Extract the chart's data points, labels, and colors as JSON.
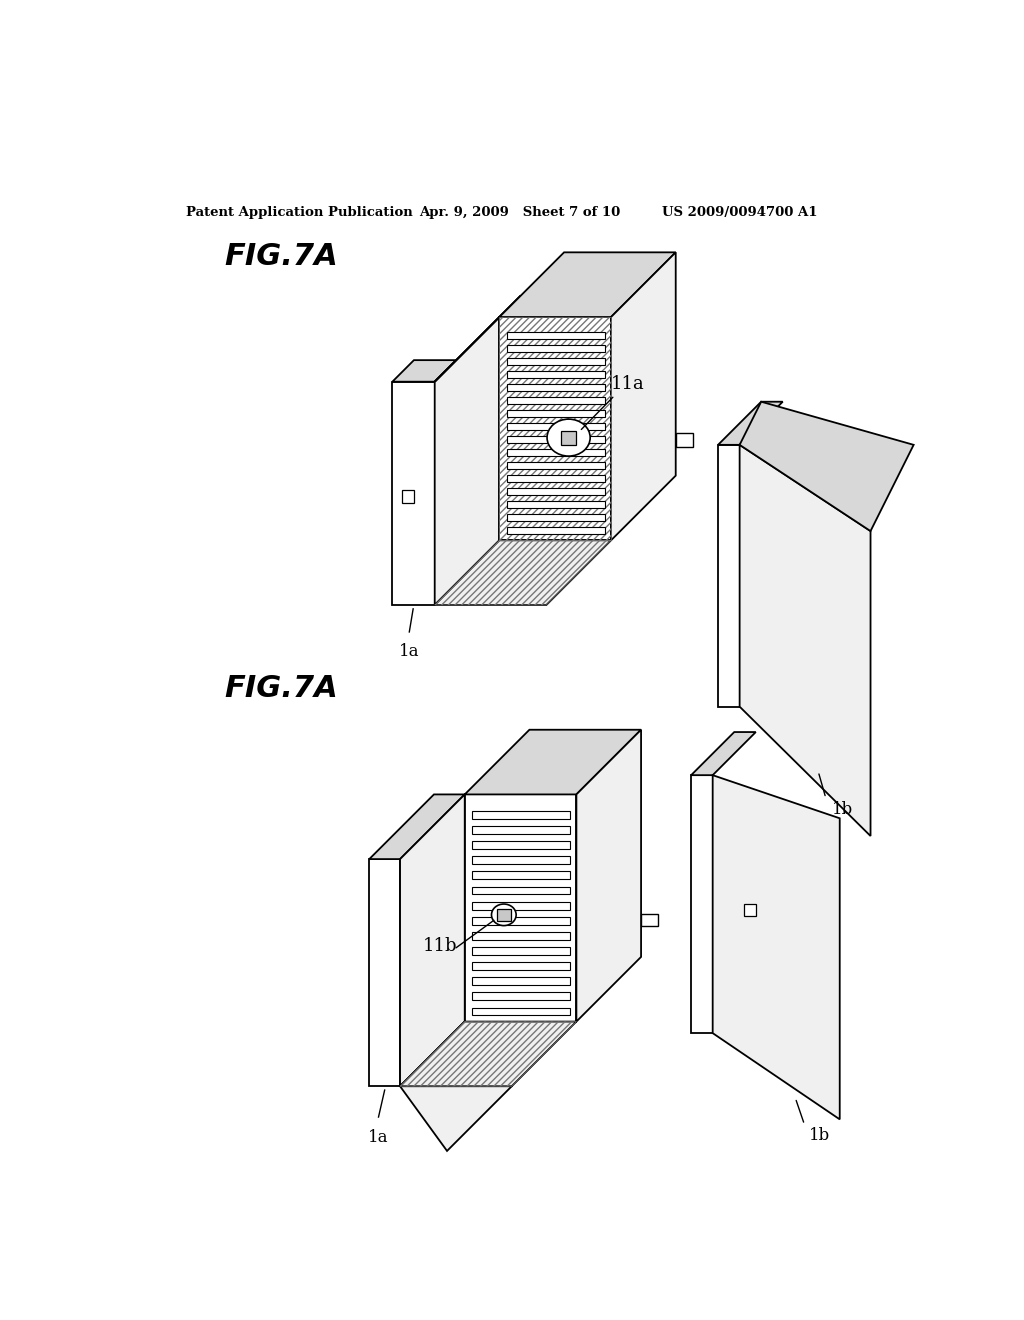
{
  "header_left": "Patent Application Publication",
  "header_mid": "Apr. 9, 2009   Sheet 7 of 10",
  "header_right": "US 2009/0094700 A1",
  "fig_label_top": "FIG.7A",
  "fig_label_bottom": "FIG.7A",
  "label_11a": "11a",
  "label_11b": "11b",
  "label_1a_top": "1a",
  "label_1b_top": "1b",
  "label_1a_bottom": "1a",
  "label_1b_bottom": "1b",
  "bg_color": "#ffffff",
  "line_color": "#000000",
  "face_white": "#ffffff",
  "face_light": "#f0f0f0",
  "face_mid": "#d8d8d8",
  "face_dark": "#c0c0c0"
}
